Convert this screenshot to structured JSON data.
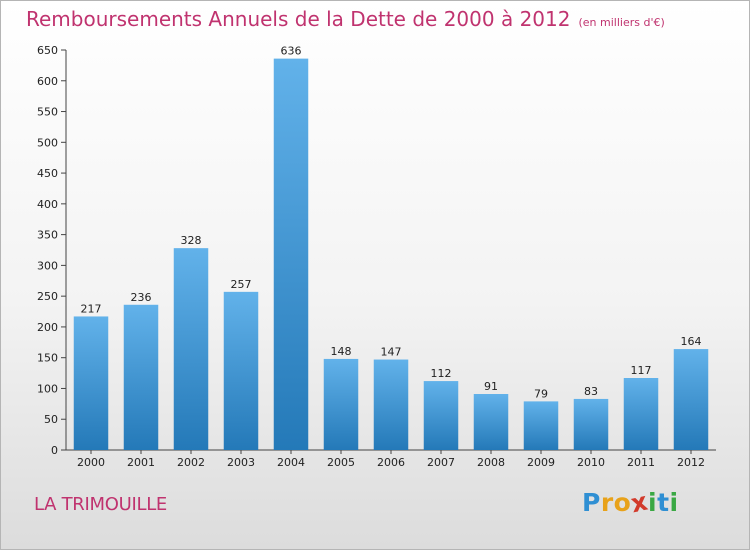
{
  "title": "Remboursements Annuels de la Dette de 2000 à 2012",
  "unit": "(en milliers d'€)",
  "city": "LA TRIMOUILLE",
  "logo": {
    "letters": [
      "P",
      "r",
      "o",
      "x",
      "i",
      "t",
      "i"
    ],
    "colors": [
      "#2f8fd3",
      "#e8a21a",
      "#e8a21a",
      "#d23a2b",
      "#3aa844",
      "#2f8fd3",
      "#3aa844"
    ]
  },
  "colors": {
    "title": "#c0336f",
    "bar_top": "#62b2ea",
    "bar_bottom": "#2479b8"
  },
  "chart_data": {
    "type": "bar",
    "categories": [
      "2000",
      "2001",
      "2002",
      "2003",
      "2004",
      "2005",
      "2006",
      "2007",
      "2008",
      "2009",
      "2010",
      "2011",
      "2012"
    ],
    "values": [
      217,
      236,
      328,
      257,
      636,
      148,
      147,
      112,
      91,
      79,
      83,
      117,
      164
    ],
    "ylim": [
      0,
      650
    ],
    "yticks": [
      0,
      50,
      100,
      150,
      200,
      250,
      300,
      350,
      400,
      450,
      500,
      550,
      600,
      650
    ],
    "grid": false,
    "legend": "none"
  }
}
